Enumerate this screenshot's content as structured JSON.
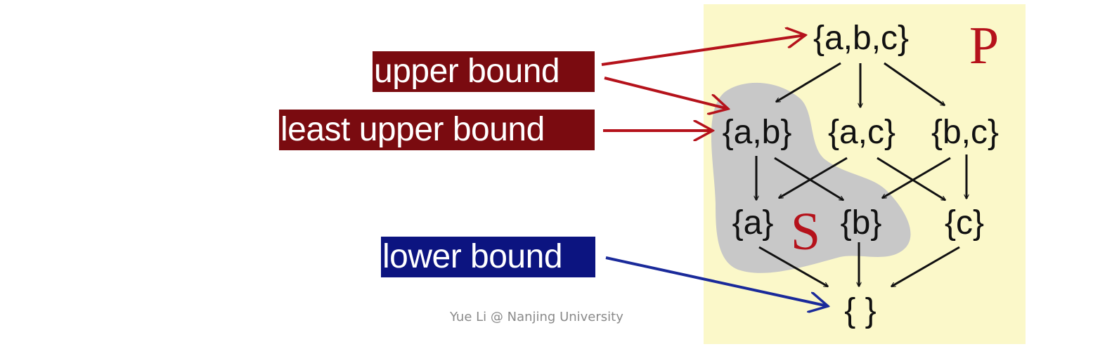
{
  "labels": {
    "upper_bound": "upper bound",
    "least_upper_bound": "least upper bound",
    "lower_bound": "lower bound"
  },
  "lattice": {
    "poset_name": "P",
    "subset_name": "S",
    "nodes": {
      "abc": "{a,b,c}",
      "ab": "{a,b}",
      "ac": "{a,c}",
      "bc": "{b,c}",
      "a": "{a}",
      "b": "{b}",
      "c": "{c}",
      "empty": "{ }"
    },
    "edges": [
      [
        "abc",
        "ab"
      ],
      [
        "abc",
        "ac"
      ],
      [
        "abc",
        "bc"
      ],
      [
        "ab",
        "a"
      ],
      [
        "ab",
        "b"
      ],
      [
        "ac",
        "a"
      ],
      [
        "ac",
        "c"
      ],
      [
        "bc",
        "b"
      ],
      [
        "bc",
        "c"
      ],
      [
        "a",
        "empty"
      ],
      [
        "b",
        "empty"
      ],
      [
        "c",
        "empty"
      ]
    ],
    "subset_members": [
      "ab",
      "a",
      "b"
    ]
  },
  "colors": {
    "panel_background": "#fbf8c9",
    "subset_region": "#c8c8c8",
    "upper_label_background": "#7a0b10",
    "lower_label_background": "#0c1480",
    "upper_arrow": "#b5121b",
    "lower_arrow": "#1a2a9a",
    "edge": "#111111",
    "poset_letter": "#b5121b"
  },
  "footer": "Yue Li @ Nanjing University"
}
